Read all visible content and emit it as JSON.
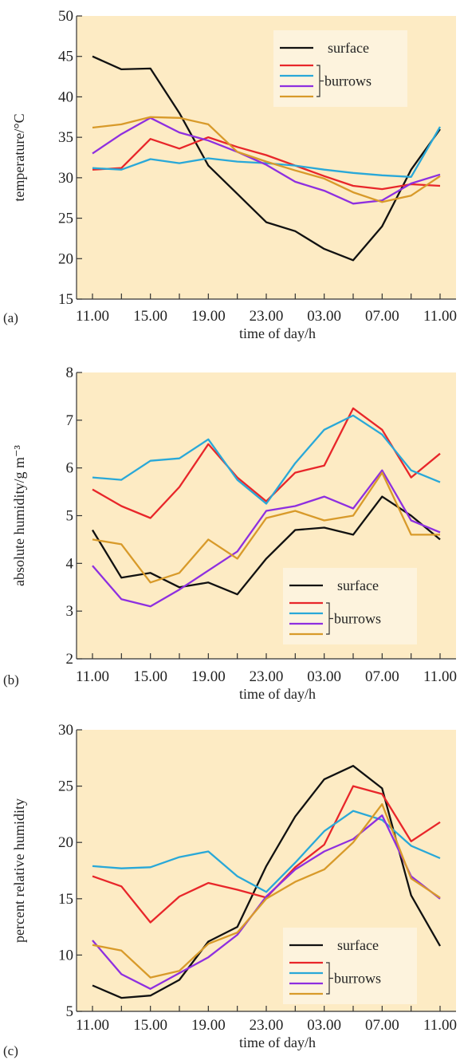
{
  "colors": {
    "plot_bg": "#fdebc4",
    "legend_bg": "#fdf3dd",
    "axis": "#333333",
    "surface": "#111111",
    "burrow_red": "#e8262a",
    "burrow_cyan": "#29a8d8",
    "burrow_purple": "#8e2fe0",
    "burrow_orange": "#d89a2a"
  },
  "chart_data": [
    {
      "panel": "(a)",
      "type": "line",
      "title": "",
      "xlabel": "time of day/h",
      "ylabel": "temperature/°C",
      "ylim": [
        15,
        50
      ],
      "yticks": [
        15,
        20,
        25,
        30,
        35,
        40,
        45,
        50
      ],
      "x_tick_labels": [
        "11.00",
        "15.00",
        "19.00",
        "23.00",
        "03.00",
        "07.00",
        "11.00"
      ],
      "legend": {
        "placement": "top-right",
        "surface_label": "surface",
        "burrows_label": "burrows"
      },
      "series": [
        {
          "color_key": "surface",
          "values": [
            45,
            43.4,
            43.5,
            38,
            31.5,
            28,
            24.5,
            23.4,
            21.2,
            19.8,
            24,
            31,
            36
          ]
        },
        {
          "color_key": "burrow_red",
          "values": [
            31,
            31.2,
            34.8,
            33.6,
            35,
            33.8,
            32.8,
            31.5,
            30.2,
            29,
            28.6,
            29.2,
            29
          ]
        },
        {
          "color_key": "burrow_cyan",
          "values": [
            31.2,
            31,
            32.3,
            31.8,
            32.4,
            32,
            31.8,
            31.5,
            31,
            30.6,
            30.3,
            30.1,
            36.3
          ]
        },
        {
          "color_key": "burrow_purple",
          "values": [
            33,
            35.4,
            37.4,
            35.6,
            34.6,
            33.2,
            31.6,
            29.5,
            28.4,
            26.8,
            27.2,
            29.3,
            30.4
          ]
        },
        {
          "color_key": "burrow_orange",
          "values": [
            36.2,
            36.6,
            37.5,
            37.4,
            36.6,
            33.2,
            32,
            30.9,
            29.9,
            28.2,
            27,
            27.8,
            30.2
          ]
        }
      ]
    },
    {
      "panel": "(b)",
      "type": "line",
      "title": "",
      "xlabel": "time of day/h",
      "ylabel": "absolute humidity/g m⁻³",
      "ylim": [
        2,
        8
      ],
      "yticks": [
        2,
        3,
        4,
        5,
        6,
        7,
        8
      ],
      "x_tick_labels": [
        "11.00",
        "15.00",
        "19.00",
        "23.00",
        "03.00",
        "07.00",
        "11.00"
      ],
      "legend": {
        "placement": "bottom-right",
        "surface_label": "surface",
        "burrows_label": "burrows"
      },
      "series": [
        {
          "color_key": "surface",
          "values": [
            4.7,
            3.7,
            3.8,
            3.5,
            3.6,
            3.35,
            4.1,
            4.7,
            4.75,
            4.6,
            5.4,
            5.0,
            4.5
          ]
        },
        {
          "color_key": "burrow_red",
          "values": [
            5.55,
            5.2,
            4.95,
            5.6,
            6.5,
            5.8,
            5.3,
            5.9,
            6.05,
            7.25,
            6.8,
            5.8,
            6.3
          ]
        },
        {
          "color_key": "burrow_cyan",
          "values": [
            5.8,
            5.75,
            6.15,
            6.2,
            6.6,
            5.75,
            5.25,
            6.1,
            6.8,
            7.1,
            6.7,
            5.95,
            5.7
          ]
        },
        {
          "color_key": "burrow_purple",
          "values": [
            3.95,
            3.25,
            3.1,
            3.45,
            3.85,
            4.25,
            5.1,
            5.2,
            5.4,
            5.15,
            5.95,
            4.9,
            4.65
          ]
        },
        {
          "color_key": "burrow_orange",
          "values": [
            4.5,
            4.4,
            3.6,
            3.8,
            4.5,
            4.1,
            4.95,
            5.1,
            4.9,
            5.0,
            5.9,
            4.6,
            4.6
          ]
        }
      ]
    },
    {
      "panel": "(c)",
      "type": "line",
      "title": "",
      "xlabel": "time of day/h",
      "ylabel": "percent relative humidity",
      "ylim": [
        5,
        30
      ],
      "yticks": [
        5,
        10,
        15,
        20,
        25,
        30
      ],
      "x_tick_labels": [
        "11.00",
        "15.00",
        "19.00",
        "23.00",
        "03.00",
        "07.00",
        "11.00"
      ],
      "legend": {
        "placement": "bottom-right",
        "surface_label": "surface",
        "burrows_label": "burrows"
      },
      "series": [
        {
          "color_key": "surface",
          "values": [
            7.3,
            6.2,
            6.4,
            7.8,
            11.2,
            12.5,
            17.9,
            22.3,
            25.6,
            26.8,
            24.8,
            15.3,
            10.8
          ]
        },
        {
          "color_key": "burrow_red",
          "values": [
            17.0,
            16.1,
            12.9,
            15.2,
            16.4,
            15.8,
            15.1,
            17.8,
            19.8,
            25.0,
            24.3,
            20.1,
            21.8
          ]
        },
        {
          "color_key": "burrow_cyan",
          "values": [
            17.9,
            17.7,
            17.8,
            18.7,
            19.2,
            17.0,
            15.6,
            18.2,
            21.0,
            22.8,
            22.0,
            19.7,
            18.6
          ]
        },
        {
          "color_key": "burrow_purple",
          "values": [
            11.3,
            8.3,
            7.0,
            8.4,
            9.8,
            11.8,
            15.2,
            17.6,
            19.2,
            20.3,
            22.4,
            17.0,
            15.0
          ]
        },
        {
          "color_key": "burrow_orange",
          "values": [
            10.9,
            10.4,
            8.0,
            8.6,
            11.0,
            12.0,
            15.0,
            16.5,
            17.6,
            20.0,
            23.4,
            16.8,
            15.1
          ]
        }
      ]
    }
  ]
}
